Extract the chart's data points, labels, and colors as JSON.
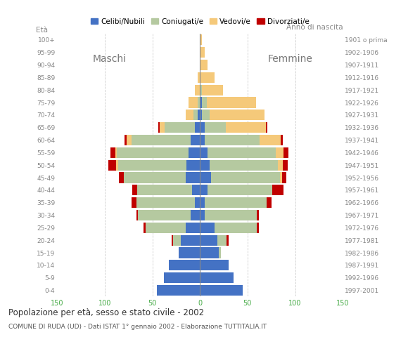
{
  "title": "Popolazione per età, sesso e stato civile - 2002",
  "subtitle": "COMUNE DI RUDA (UD) - Dati ISTAT 1° gennaio 2002 - Elaborazione TUTTITALIA.IT",
  "age_groups": [
    "0-4",
    "5-9",
    "10-14",
    "15-19",
    "20-24",
    "25-29",
    "30-34",
    "35-39",
    "40-44",
    "45-49",
    "50-54",
    "55-59",
    "60-64",
    "65-69",
    "70-74",
    "75-79",
    "80-84",
    "85-89",
    "90-94",
    "95-99",
    "100+"
  ],
  "birth_years": [
    "1997-2001",
    "1992-1996",
    "1987-1991",
    "1982-1986",
    "1977-1981",
    "1972-1976",
    "1967-1971",
    "1962-1966",
    "1957-1961",
    "1952-1956",
    "1947-1951",
    "1942-1946",
    "1937-1941",
    "1932-1936",
    "1927-1931",
    "1922-1926",
    "1917-1921",
    "1912-1916",
    "1907-1911",
    "1902-1906",
    "1901 o prima"
  ],
  "colors": {
    "celibi": "#4472c4",
    "coniugati": "#b5c9a0",
    "vedovi": "#f5c97a",
    "divorziati": "#c00000"
  },
  "legend_labels": [
    "Celibi/Nubili",
    "Coniugati/e",
    "Vedovi/e",
    "Divorziati/e"
  ],
  "males": {
    "celibi": [
      45,
      38,
      33,
      22,
      20,
      15,
      10,
      5,
      8,
      15,
      14,
      12,
      10,
      5,
      2,
      0,
      0,
      0,
      0,
      0,
      0
    ],
    "coniugati": [
      0,
      0,
      0,
      0,
      8,
      42,
      55,
      62,
      58,
      65,
      72,
      75,
      62,
      32,
      5,
      2,
      0,
      0,
      0,
      0,
      0
    ],
    "vedovi": [
      0,
      0,
      0,
      0,
      0,
      0,
      0,
      0,
      0,
      0,
      2,
      2,
      5,
      5,
      8,
      10,
      5,
      2,
      0,
      0,
      0
    ],
    "divorziati": [
      0,
      0,
      0,
      0,
      2,
      2,
      2,
      5,
      5,
      5,
      8,
      5,
      2,
      2,
      0,
      0,
      0,
      0,
      0,
      0,
      0
    ]
  },
  "females": {
    "nubili": [
      45,
      35,
      30,
      20,
      18,
      15,
      5,
      5,
      8,
      12,
      10,
      8,
      5,
      5,
      2,
      2,
      0,
      0,
      0,
      0,
      0
    ],
    "coniugate": [
      0,
      0,
      0,
      2,
      10,
      45,
      55,
      65,
      68,
      72,
      72,
      72,
      58,
      22,
      8,
      5,
      2,
      0,
      0,
      0,
      0
    ],
    "vedove": [
      0,
      0,
      0,
      0,
      0,
      0,
      0,
      0,
      0,
      2,
      5,
      8,
      22,
      42,
      58,
      52,
      22,
      15,
      8,
      5,
      2
    ],
    "divorziate": [
      0,
      0,
      0,
      0,
      2,
      2,
      2,
      5,
      12,
      5,
      5,
      5,
      2,
      2,
      0,
      0,
      0,
      0,
      0,
      0,
      0
    ]
  },
  "xlim": 150,
  "background_color": "#ffffff",
  "grid_color": "#cccccc"
}
